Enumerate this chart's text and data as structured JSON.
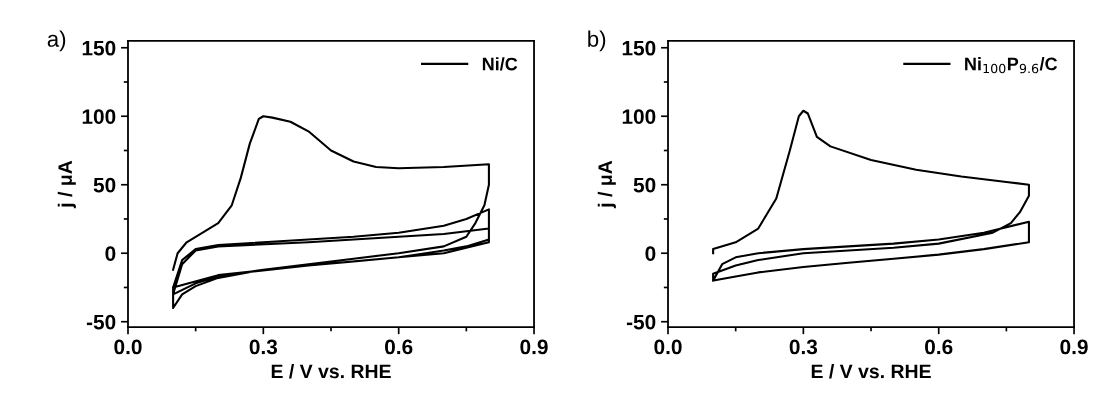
{
  "chart_data": [
    {
      "type": "line",
      "xlabel": "E / V vs. RHE",
      "ylabel": "j / μA",
      "annotations": [
        "a)"
      ],
      "xlim": [
        0,
        0.9
      ],
      "ylim": [
        -54,
        155
      ],
      "xticks": [
        {
          "value": 0,
          "label": "0.0"
        },
        0.3,
        0.6,
        0.9
      ],
      "yticks": [
        -50,
        0,
        50,
        100,
        150
      ],
      "legend": "top right",
      "series": [
        {
          "name": "Ni/C",
          "color": "#000000",
          "x": [
            0.1,
            0.11,
            0.13,
            0.16,
            0.2,
            0.23,
            0.25,
            0.27,
            0.29,
            0.3,
            0.32,
            0.36,
            0.4,
            0.45,
            0.5,
            0.55,
            0.6,
            0.7,
            0.8,
            0.8,
            0.79,
            0.77,
            0.75,
            0.7,
            0.6,
            0.5,
            0.4,
            0.3,
            0.2,
            0.15,
            0.12,
            0.1,
            0.1,
            0.12,
            0.15,
            0.2,
            0.3,
            0.4,
            0.5,
            0.6,
            0.7,
            0.75,
            0.8,
            0.8,
            0.75,
            0.7,
            0.6,
            0.5,
            0.4,
            0.3,
            0.2,
            0.15,
            0.1,
            0.1,
            0.12,
            0.15,
            0.2,
            0.4,
            0.6,
            0.7,
            0.8,
            0.8,
            0.7,
            0.6,
            0.4,
            0.2,
            0.1
          ],
          "values": [
            -12,
            0,
            8,
            14,
            22,
            35,
            55,
            80,
            98,
            100,
            99,
            96,
            89,
            75,
            67,
            63,
            62,
            63,
            65,
            50,
            35,
            22,
            12,
            5,
            0,
            -4,
            -8,
            -12,
            -18,
            -24,
            -30,
            -40,
            -25,
            -5,
            3,
            6,
            8,
            10,
            12,
            15,
            20,
            25,
            32,
            10,
            5,
            2,
            -3,
            -6,
            -9,
            -12,
            -17,
            -22,
            -30,
            -30,
            -8,
            2,
            5,
            8,
            12,
            14,
            18,
            8,
            0,
            -3,
            -9,
            -16,
            -25
          ]
        }
      ]
    },
    {
      "type": "line",
      "xlabel": "E / V vs. RHE",
      "ylabel": "j / μA",
      "annotations": [
        "b)"
      ],
      "xlim": [
        0,
        0.9
      ],
      "ylim": [
        -54,
        155
      ],
      "xticks": [
        {
          "value": 0,
          "label": "0.0"
        },
        0.3,
        0.6,
        0.9
      ],
      "yticks": [
        -50,
        0,
        50,
        100,
        150
      ],
      "legend": "top right",
      "series": [
        {
          "name": "Ni$_{100}$P$_{9.6}$/C",
          "color": "#000000",
          "x": [
            0.1,
            0.1,
            0.15,
            0.2,
            0.24,
            0.27,
            0.29,
            0.3,
            0.31,
            0.33,
            0.36,
            0.45,
            0.55,
            0.65,
            0.75,
            0.8,
            0.8,
            0.78,
            0.76,
            0.72,
            0.6,
            0.5,
            0.4,
            0.3,
            0.2,
            0.15,
            0.1,
            0.1,
            0.12,
            0.15,
            0.2,
            0.3,
            0.5,
            0.6,
            0.7,
            0.8,
            0.8,
            0.7,
            0.6,
            0.5,
            0.4,
            0.3,
            0.2,
            0.15,
            0.1
          ],
          "values": [
            0,
            3,
            8,
            18,
            40,
            75,
            100,
            104,
            102,
            85,
            78,
            68,
            61,
            56,
            52,
            50,
            42,
            30,
            22,
            15,
            7,
            4,
            2,
            0,
            -5,
            -9,
            -15,
            -20,
            -8,
            -3,
            0,
            3,
            7,
            10,
            15,
            23,
            8,
            3,
            -1,
            -4,
            -7,
            -10,
            -14,
            -17,
            -20
          ]
        }
      ]
    }
  ]
}
